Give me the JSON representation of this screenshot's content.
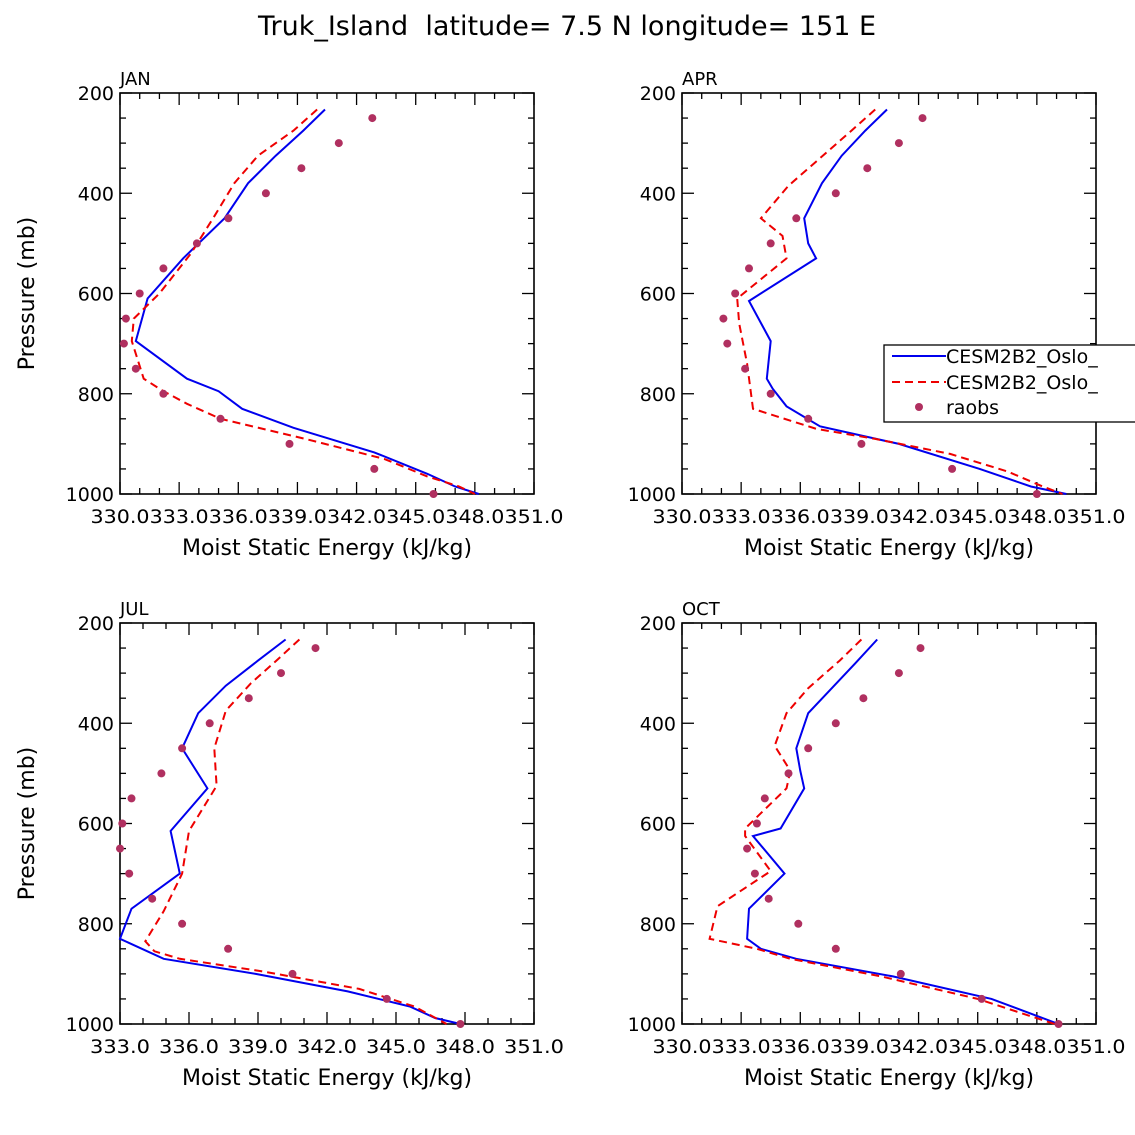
{
  "figure": {
    "title": "Truk_Island  latitude= 7.5 N longitude= 151 E"
  },
  "legend": {
    "entries": [
      {
        "label": "CESM2B2_Oslo_",
        "color": "#0000ee",
        "style": "solid"
      },
      {
        "label": "CESM2B2_Oslo_",
        "color": "#ee0000",
        "style": "dashed"
      },
      {
        "label": "raobs",
        "color": "#b03060",
        "style": "marker"
      }
    ]
  },
  "chart_data": [
    {
      "type": "line",
      "title": "JAN",
      "xlabel": "Moist Static Energy (kJ/kg)",
      "ylabel": "Pressure (mb)",
      "xlim": [
        330.0,
        351.0
      ],
      "ylim": [
        200,
        1000
      ],
      "y_inverted": true,
      "x_tick_labels": [
        "330.0",
        "333.0",
        "336.0",
        "339.0",
        "342.0",
        "345.0",
        "348.0",
        "351.0"
      ],
      "y_tick_labels": [
        "200",
        "400",
        "600",
        "800",
        "1000"
      ],
      "x_tick_values": [
        330,
        333,
        336,
        339,
        342,
        345,
        348,
        351
      ],
      "y_tick_values": [
        200,
        400,
        600,
        800,
        1000
      ],
      "series": [
        {
          "name": "CESM2B2_Oslo_",
          "color": "#0000ee",
          "style": "solid",
          "x": [
            340.4,
            339.3,
            337.9,
            336.5,
            335.3,
            333.2,
            331.4,
            330.8,
            333.4,
            335.0,
            336.2,
            338.8,
            342.9,
            345.6,
            347.0,
            348.2
          ],
          "y": [
            233,
            275,
            325,
            380,
            450,
            530,
            610,
            695,
            770,
            795,
            830,
            868,
            917,
            960,
            985,
            1000
          ]
        },
        {
          "name": "CESM2B2_Oslo_",
          "color": "#ee0000",
          "style": "dashed",
          "x": [
            340.0,
            338.8,
            337.0,
            335.8,
            334.8,
            333.6,
            332.0,
            330.7,
            330.6,
            331.2,
            332.2,
            333.4,
            335.1,
            339.4,
            343.4,
            345.6,
            347.2,
            348.0
          ],
          "y": [
            233,
            275,
            325,
            380,
            445,
            520,
            600,
            650,
            695,
            770,
            795,
            820,
            850,
            890,
            930,
            965,
            985,
            1000
          ]
        }
      ],
      "points": {
        "name": "raobs",
        "x": [
          342.8,
          341.1,
          339.2,
          337.4,
          335.5,
          333.9,
          332.2,
          331.0,
          330.3,
          330.2,
          330.8,
          332.2,
          335.1,
          338.6,
          342.9,
          345.9
        ],
        "y": [
          250,
          300,
          350,
          400,
          450,
          500,
          550,
          600,
          650,
          700,
          750,
          800,
          850,
          900,
          950,
          1000
        ]
      }
    },
    {
      "type": "line",
      "title": "APR",
      "xlabel": "Moist Static Energy (kJ/kg)",
      "ylabel": "Pressure (mb)",
      "xlim": [
        330.0,
        351.0
      ],
      "ylim": [
        200,
        1000
      ],
      "y_inverted": true,
      "x_tick_labels": [
        "330.0",
        "333.0",
        "336.0",
        "339.0",
        "342.0",
        "345.0",
        "348.0",
        "351.0"
      ],
      "y_tick_labels": [
        "200",
        "400",
        "600",
        "800",
        "1000"
      ],
      "x_tick_values": [
        330,
        333,
        336,
        339,
        342,
        345,
        348,
        351
      ],
      "y_tick_values": [
        200,
        400,
        600,
        800,
        1000
      ],
      "series": [
        {
          "name": "CESM2B2_Oslo_",
          "color": "#0000ee",
          "style": "solid",
          "x": [
            340.4,
            339.3,
            338.1,
            337.1,
            336.2,
            336.4,
            336.8,
            333.4,
            334.5,
            334.3,
            334.6,
            335.3,
            337.0,
            341.0,
            345.1,
            347.7,
            349.5
          ],
          "y": [
            233,
            275,
            325,
            380,
            450,
            500,
            530,
            615,
            695,
            770,
            790,
            825,
            865,
            900,
            950,
            985,
            1000
          ]
        },
        {
          "name": "CESM2B2_Oslo_",
          "color": "#ee0000",
          "style": "dashed",
          "x": [
            339.8,
            338.6,
            337.0,
            335.4,
            334.0,
            335.1,
            335.3,
            332.8,
            332.9,
            333.3,
            333.6,
            334.8,
            336.8,
            339.8,
            343.6,
            346.5,
            348.3,
            349.3
          ],
          "y": [
            233,
            275,
            330,
            385,
            450,
            485,
            530,
            610,
            660,
            740,
            830,
            845,
            870,
            890,
            920,
            955,
            985,
            1000
          ]
        }
      ],
      "points": {
        "name": "raobs",
        "x": [
          342.2,
          341.0,
          339.4,
          337.8,
          335.8,
          334.5,
          333.4,
          332.7,
          332.1,
          332.3,
          333.2,
          334.5,
          336.4,
          339.1,
          343.7,
          348.0
        ],
        "y": [
          250,
          300,
          350,
          400,
          450,
          500,
          550,
          600,
          650,
          700,
          750,
          800,
          850,
          900,
          950,
          1000
        ]
      }
    },
    {
      "type": "line",
      "title": "JUL",
      "xlabel": "Moist Static Energy (kJ/kg)",
      "ylabel": "Pressure (mb)",
      "xlim": [
        333.0,
        351.0
      ],
      "ylim": [
        200,
        1000
      ],
      "y_inverted": true,
      "x_tick_labels": [
        "333.0",
        "336.0",
        "339.0",
        "342.0",
        "345.0",
        "348.0",
        "351.0"
      ],
      "y_tick_labels": [
        "200",
        "400",
        "600",
        "800",
        "1000"
      ],
      "x_tick_values": [
        333,
        336,
        339,
        342,
        345,
        348,
        351
      ],
      "y_tick_values": [
        200,
        400,
        600,
        800,
        1000
      ],
      "series": [
        {
          "name": "CESM2B2_Oslo_",
          "color": "#0000ee",
          "style": "solid",
          "x": [
            340.2,
            339.0,
            337.6,
            336.4,
            335.7,
            336.8,
            335.2,
            335.6,
            333.5,
            333.0,
            334.9,
            338.9,
            342.9,
            345.6,
            346.7,
            347.8
          ],
          "y": [
            233,
            275,
            325,
            380,
            450,
            530,
            615,
            700,
            770,
            830,
            870,
            900,
            935,
            965,
            988,
            1000
          ]
        },
        {
          "name": "CESM2B2_Oslo_",
          "color": "#ee0000",
          "style": "dashed",
          "x": [
            340.8,
            339.8,
            338.7,
            337.6,
            337.1,
            337.2,
            336.0,
            335.7,
            334.9,
            334.1,
            334.5,
            335.6,
            339.2,
            343.4,
            345.8,
            347.2
          ],
          "y": [
            233,
            275,
            320,
            375,
            450,
            525,
            615,
            700,
            775,
            835,
            855,
            870,
            895,
            930,
            965,
            1000
          ]
        }
      ],
      "points": {
        "name": "raobs",
        "x": [
          341.5,
          340.0,
          338.6,
          336.9,
          335.7,
          334.8,
          333.5,
          333.1,
          333.0,
          333.4,
          334.4,
          335.7,
          337.7,
          340.5,
          344.6,
          347.8
        ],
        "y": [
          250,
          300,
          350,
          400,
          450,
          500,
          550,
          600,
          650,
          700,
          750,
          800,
          850,
          900,
          950,
          1000
        ]
      }
    },
    {
      "type": "line",
      "title": "OCT",
      "xlabel": "Moist Static Energy (kJ/kg)",
      "ylabel": "Pressure (mb)",
      "xlim": [
        330.0,
        351.0
      ],
      "ylim": [
        200,
        1000
      ],
      "y_inverted": true,
      "x_tick_labels": [
        "330.0",
        "333.0",
        "336.0",
        "339.0",
        "342.0",
        "345.0",
        "348.0",
        "351.0"
      ],
      "y_tick_labels": [
        "200",
        "400",
        "600",
        "800",
        "1000"
      ],
      "x_tick_values": [
        330,
        333,
        336,
        339,
        342,
        345,
        348,
        351
      ],
      "y_tick_values": [
        200,
        400,
        600,
        800,
        1000
      ],
      "series": [
        {
          "name": "CESM2B2_Oslo_",
          "color": "#0000ee",
          "style": "solid",
          "x": [
            339.9,
            338.8,
            337.6,
            336.4,
            335.8,
            336.0,
            336.2,
            335.0,
            333.6,
            335.2,
            333.4,
            333.3,
            334.0,
            335.8,
            340.7,
            345.7,
            349.1
          ],
          "y": [
            233,
            280,
            330,
            380,
            450,
            495,
            530,
            610,
            625,
            700,
            770,
            830,
            850,
            870,
            905,
            950,
            1000
          ]
        },
        {
          "name": "CESM2B2_Oslo_",
          "color": "#ee0000",
          "style": "dashed",
          "x": [
            339.1,
            338.0,
            336.4,
            335.3,
            334.7,
            335.5,
            335.3,
            333.2,
            333.2,
            334.5,
            331.8,
            331.4,
            333.8,
            335.5,
            340.1,
            345.0,
            348.9
          ],
          "y": [
            233,
            275,
            330,
            380,
            445,
            495,
            530,
            610,
            625,
            695,
            765,
            830,
            850,
            870,
            905,
            950,
            1000
          ]
        }
      ],
      "points": {
        "name": "raobs",
        "x": [
          342.1,
          341.0,
          339.2,
          337.8,
          336.4,
          335.4,
          334.2,
          333.8,
          333.3,
          333.7,
          334.4,
          335.9,
          337.8,
          341.1,
          345.2,
          349.1
        ],
        "y": [
          250,
          300,
          350,
          400,
          450,
          500,
          550,
          600,
          650,
          700,
          750,
          800,
          850,
          900,
          950,
          1000
        ]
      }
    }
  ]
}
